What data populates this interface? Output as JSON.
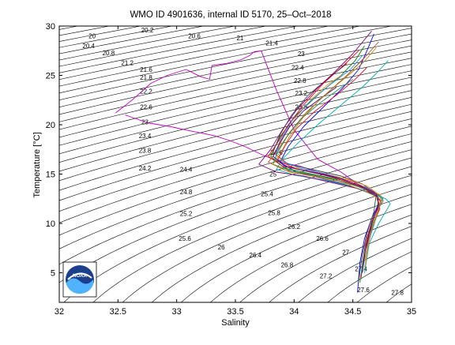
{
  "chart_data": {
    "type": "line",
    "title": "WMO ID 4901636, internal ID 5170, 25–Oct–2018",
    "xlabel": "Salinity",
    "ylabel": "Temperature [°C]",
    "xlim": [
      32,
      35
    ],
    "ylim": [
      2,
      30
    ],
    "xticks": [
      "32",
      "32.5",
      "33",
      "33.5",
      "34",
      "34.5",
      "35"
    ],
    "yticks": [
      "5",
      "10",
      "15",
      "20",
      "25",
      "30"
    ],
    "grid": false,
    "logo_text": "NOAA",
    "isopycnal_labels": [
      {
        "text": "20",
        "s": 32.28,
        "t": 29.0
      },
      {
        "text": "20.2",
        "s": 32.75,
        "t": 29.6
      },
      {
        "text": "20.6",
        "s": 33.15,
        "t": 29.0
      },
      {
        "text": "21",
        "s": 33.54,
        "t": 28.8
      },
      {
        "text": "21.4",
        "s": 33.81,
        "t": 28.3
      },
      {
        "text": "20.4",
        "s": 32.25,
        "t": 28.0
      },
      {
        "text": "20.8",
        "s": 32.42,
        "t": 27.3
      },
      {
        "text": "21.2",
        "s": 32.58,
        "t": 26.3
      },
      {
        "text": "21.6",
        "s": 32.74,
        "t": 25.6
      },
      {
        "text": "21.8",
        "s": 32.74,
        "t": 24.8
      },
      {
        "text": "22.2",
        "s": 32.74,
        "t": 23.4
      },
      {
        "text": "22.6",
        "s": 32.74,
        "t": 21.8
      },
      {
        "text": "23",
        "s": 32.73,
        "t": 20.3
      },
      {
        "text": "23.4",
        "s": 32.73,
        "t": 18.9
      },
      {
        "text": "23.8",
        "s": 32.73,
        "t": 17.4
      },
      {
        "text": "24.2",
        "s": 32.73,
        "t": 15.6
      },
      {
        "text": "24.4",
        "s": 33.08,
        "t": 15.5
      },
      {
        "text": "24.8",
        "s": 33.08,
        "t": 13.2
      },
      {
        "text": "25.2",
        "s": 33.08,
        "t": 11.0
      },
      {
        "text": "25.6",
        "s": 33.07,
        "t": 8.5
      },
      {
        "text": "26",
        "s": 33.38,
        "t": 7.6
      },
      {
        "text": "26.4",
        "s": 33.67,
        "t": 6.8
      },
      {
        "text": "26.8",
        "s": 33.94,
        "t": 5.8
      },
      {
        "text": "27.2",
        "s": 34.27,
        "t": 4.7
      },
      {
        "text": "27.4",
        "s": 34.57,
        "t": 5.4
      },
      {
        "text": "27.6",
        "s": 34.59,
        "t": 3.3
      },
      {
        "text": "27.8",
        "s": 34.88,
        "t": 3.0
      },
      {
        "text": "23",
        "s": 34.06,
        "t": 27.2
      },
      {
        "text": "22.4",
        "s": 34.03,
        "t": 25.8
      },
      {
        "text": "22.8",
        "s": 34.05,
        "t": 24.5
      },
      {
        "text": "23.2",
        "s": 34.06,
        "t": 23.2
      },
      {
        "text": "23.6",
        "s": 34.06,
        "t": 21.8
      },
      {
        "text": "24.6",
        "s": 33.85,
        "t": 17.2
      },
      {
        "text": "25",
        "s": 33.82,
        "t": 15.0
      },
      {
        "text": "25.4",
        "s": 33.77,
        "t": 13.0
      },
      {
        "text": "25.8",
        "s": 33.83,
        "t": 11.1
      },
      {
        "text": "26.2",
        "s": 34.0,
        "t": 9.7
      },
      {
        "text": "26.6",
        "s": 34.24,
        "t": 8.5
      },
      {
        "text": "27",
        "s": 34.44,
        "t": 7.1
      }
    ],
    "series": [
      {
        "color": "#c000c0",
        "s": [
          32.48,
          32.62,
          32.78,
          32.92,
          33.08,
          33.2,
          33.28,
          33.3,
          33.42,
          33.55,
          33.62,
          33.66,
          33.72,
          33.85,
          34.0,
          34.2,
          34.4,
          34.6,
          34.72
        ],
        "t": [
          21.2,
          22.5,
          24.2,
          25.0,
          25.6,
          24.9,
          24.6,
          26.0,
          26.2,
          26.6,
          27.0,
          27.4,
          27.5,
          23.5,
          19.5,
          16.5,
          15.2,
          13.5,
          12.5
        ]
      },
      {
        "color": "#c000c0",
        "s": [
          32.56,
          32.75,
          32.95,
          33.15,
          33.32,
          33.45,
          33.58,
          33.72,
          33.88,
          34.05,
          34.25,
          34.45,
          34.65,
          34.73
        ],
        "t": [
          21.0,
          20.2,
          19.8,
          19.3,
          18.9,
          18.4,
          17.8,
          17.0,
          16.2,
          15.8,
          15.0,
          14.2,
          13.2,
          12.4
        ]
      },
      {
        "color": "#0000ff",
        "s": [
          34.68,
          34.62,
          34.55,
          34.42,
          34.25,
          34.08,
          33.95,
          33.88,
          34.02,
          34.22,
          34.42,
          34.58,
          34.7,
          34.72,
          34.66,
          34.6,
          34.56,
          34.54
        ],
        "t": [
          29.2,
          27.5,
          25.6,
          23.8,
          21.8,
          19.8,
          17.8,
          16.2,
          15.2,
          14.6,
          14.0,
          13.4,
          12.8,
          12.0,
          10.5,
          8.5,
          6.0,
          3.0
        ]
      },
      {
        "color": "#008000",
        "s": [
          34.6,
          34.52,
          34.4,
          34.22,
          34.02,
          33.88,
          33.8,
          33.92,
          34.15,
          34.4,
          34.6,
          34.72,
          34.7,
          34.64,
          34.59,
          34.56
        ],
        "t": [
          28.0,
          26.5,
          25.0,
          23.2,
          21.0,
          18.8,
          16.8,
          15.6,
          15.0,
          14.4,
          13.6,
          12.6,
          11.0,
          9.0,
          6.5,
          4.0
        ]
      },
      {
        "color": "#ff0000",
        "s": [
          34.55,
          34.42,
          34.25,
          34.08,
          33.95,
          33.86,
          33.78,
          33.9,
          34.12,
          34.35,
          34.55,
          34.7,
          34.73,
          34.66,
          34.6,
          34.57
        ],
        "t": [
          27.5,
          26.0,
          24.2,
          22.0,
          20.0,
          18.2,
          16.8,
          15.8,
          15.3,
          14.6,
          13.8,
          12.8,
          11.5,
          9.5,
          7.0,
          4.5
        ]
      },
      {
        "color": "#00b0b0",
        "s": [
          34.8,
          34.7,
          34.58,
          34.4,
          34.2,
          34.02,
          33.9,
          33.85,
          34.0,
          34.25,
          34.48,
          34.65,
          34.78,
          34.82,
          34.72,
          34.64,
          34.6
        ],
        "t": [
          26.5,
          25.2,
          23.8,
          22.0,
          20.0,
          18.0,
          16.5,
          15.5,
          14.9,
          14.4,
          13.8,
          13.0,
          12.5,
          12.0,
          10.0,
          8.0,
          5.0
        ]
      },
      {
        "color": "#404040",
        "s": [
          34.45,
          34.3,
          34.12,
          33.98,
          33.88,
          33.82,
          33.95,
          34.18,
          34.4,
          34.58,
          34.7,
          34.68,
          34.62,
          34.58,
          34.55
        ],
        "t": [
          26.2,
          24.8,
          23.0,
          21.0,
          19.0,
          17.2,
          16.0,
          15.4,
          14.8,
          14.0,
          13.0,
          11.2,
          9.0,
          6.8,
          4.2
        ]
      },
      {
        "color": "#800080",
        "s": [
          34.66,
          34.5,
          34.35,
          34.18,
          34.02,
          33.9,
          33.8,
          33.7,
          33.85,
          34.08,
          34.3,
          34.52,
          34.68,
          34.74,
          34.68,
          34.62
        ],
        "t": [
          29.5,
          27.2,
          25.4,
          23.5,
          21.5,
          19.5,
          17.5,
          16.0,
          15.2,
          14.8,
          14.2,
          13.6,
          13.0,
          12.2,
          10.0,
          7.5
        ]
      },
      {
        "color": "#ff8c00",
        "s": [
          34.4,
          34.28,
          34.15,
          34.02,
          33.92,
          33.84,
          33.96,
          34.2,
          34.45,
          34.62,
          34.74,
          34.7,
          34.64,
          34.6
        ],
        "t": [
          25.0,
          24.0,
          22.6,
          20.8,
          19.0,
          17.0,
          15.8,
          15.2,
          14.5,
          13.8,
          12.8,
          11.0,
          8.5,
          5.5
        ]
      },
      {
        "color": "#a0522d",
        "s": [
          34.72,
          34.6,
          34.45,
          34.28,
          34.1,
          33.96,
          33.86,
          33.78,
          33.92,
          34.15,
          34.38,
          34.58,
          34.72,
          34.76,
          34.68,
          34.61,
          34.58
        ],
        "t": [
          28.4,
          26.8,
          25.0,
          23.2,
          21.2,
          19.2,
          17.4,
          16.2,
          15.4,
          14.9,
          14.3,
          13.6,
          12.9,
          12.3,
          10.8,
          8.2,
          5.8
        ]
      },
      {
        "color": "#1e90ff",
        "s": [
          34.58,
          34.48,
          34.3,
          34.12,
          33.98,
          33.88,
          33.84,
          34.05,
          34.28,
          34.5,
          34.66,
          34.75,
          34.7,
          34.63,
          34.58
        ],
        "t": [
          27.0,
          25.6,
          24.0,
          22.2,
          20.4,
          18.4,
          16.6,
          15.6,
          15.0,
          14.2,
          13.4,
          12.5,
          10.6,
          8.0,
          5.2
        ]
      },
      {
        "color": "#2e8b57",
        "s": [
          34.5,
          34.38,
          34.22,
          34.06,
          33.94,
          33.86,
          33.82,
          33.98,
          34.22,
          34.46,
          34.64,
          34.76,
          34.7,
          34.64,
          34.6,
          34.57
        ],
        "t": [
          24.6,
          23.6,
          22.2,
          20.6,
          18.8,
          17.2,
          16.0,
          15.3,
          14.8,
          14.1,
          13.3,
          12.6,
          11.4,
          9.2,
          7.0,
          4.8
        ]
      },
      {
        "color": "#dc143c",
        "s": [
          34.62,
          34.52,
          34.36,
          34.18,
          34.02,
          33.92,
          33.86,
          34.02,
          34.26,
          34.5,
          34.68,
          34.74,
          34.66,
          34.61
        ],
        "t": [
          25.8,
          24.6,
          23.0,
          21.4,
          19.6,
          17.8,
          16.4,
          15.5,
          15.0,
          14.2,
          13.2,
          12.2,
          10.2,
          7.8
        ]
      },
      {
        "color": "#4b0082",
        "s": [
          34.36,
          34.24,
          34.08,
          33.96,
          33.88,
          33.82,
          33.92,
          34.14,
          34.38,
          34.56,
          34.7,
          34.72,
          34.66,
          34.61,
          34.58
        ],
        "t": [
          23.8,
          22.8,
          21.4,
          19.8,
          18.2,
          16.8,
          15.8,
          15.2,
          14.6,
          13.8,
          13.0,
          12.0,
          10.0,
          7.6,
          5.0
        ]
      },
      {
        "color": "#b8860b",
        "s": [
          34.7,
          34.58,
          34.42,
          34.24,
          34.08,
          33.96,
          33.88,
          33.82,
          33.96,
          34.2,
          34.44,
          34.62,
          34.74,
          34.72,
          34.65,
          34.6
        ],
        "t": [
          27.8,
          26.2,
          24.6,
          22.8,
          20.8,
          18.8,
          17.0,
          16.0,
          15.2,
          14.7,
          14.0,
          13.2,
          12.4,
          11.4,
          9.0,
          6.2
        ]
      }
    ]
  }
}
